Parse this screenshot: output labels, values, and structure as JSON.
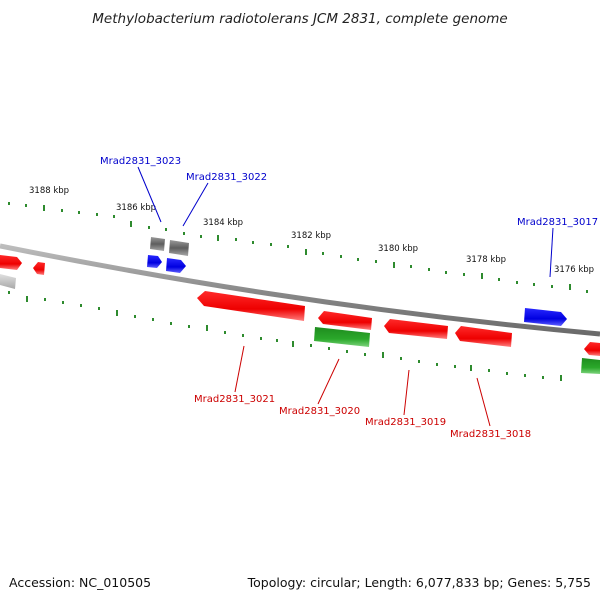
{
  "title": "Methylobacterium radiotolerans JCM 2831, complete genome",
  "footer": {
    "accession": "Accession: NC_010505",
    "summary": "Topology: circular; Length: 6,077,833 bp; Genes: 5,755"
  },
  "scale_labels": [
    "3188 kbp",
    "3186 kbp",
    "3184 kbp",
    "3182 kbp",
    "3180 kbp",
    "3178 kbp",
    "3176 kbp"
  ],
  "gene_labels": [
    {
      "name": "Mrad2831_3023",
      "strand": "forward",
      "color": "#0000cc"
    },
    {
      "name": "Mrad2831_3022",
      "strand": "forward",
      "color": "#0000cc"
    },
    {
      "name": "Mrad2831_3017",
      "strand": "forward",
      "color": "#0000cc"
    },
    {
      "name": "Mrad2831_3021",
      "strand": "reverse",
      "color": "#cc0000"
    },
    {
      "name": "Mrad2831_3020",
      "strand": "reverse",
      "color": "#cc0000"
    },
    {
      "name": "Mrad2831_3019",
      "strand": "reverse",
      "color": "#cc0000"
    },
    {
      "name": "Mrad2831_3018",
      "strand": "reverse",
      "color": "#cc0000"
    }
  ],
  "colors": {
    "forward_gene": "#0000ff",
    "reverse_gene": "#ff0000",
    "rna_gene": "#22aa22",
    "pseudo_gene": "#777777",
    "backbone": "#888888",
    "ticks": "#2e8b2e"
  }
}
